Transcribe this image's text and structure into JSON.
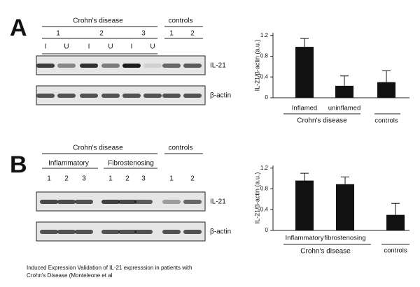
{
  "panels": [
    {
      "letter": "A",
      "blot": {
        "group": "Crohn's disease",
        "controls": "controls",
        "patients": [
          "1",
          "2",
          "3"
        ],
        "control_lanes": [
          "1",
          "2"
        ],
        "lanes": [
          "I",
          "U",
          "I",
          "U",
          "I",
          "U"
        ],
        "rows": [
          "IL-21",
          "β-actin"
        ]
      }
    },
    {
      "letter": "B",
      "blot": {
        "group": "Crohn's disease",
        "controls": "controls",
        "subgroups": [
          "Inflammatory",
          "Fibrostenosing"
        ],
        "lanes": [
          "1",
          "2",
          "3",
          "1",
          "2",
          "3"
        ],
        "control_lanes": [
          "1",
          "2"
        ],
        "rows": [
          "IL-21",
          "β-actin"
        ]
      }
    }
  ],
  "chart_data": [
    {
      "type": "bar",
      "y_label": "IL-21/β-actin (a.u.)",
      "categories": [
        "Inflamed",
        "uninflamed",
        "controls"
      ],
      "values": [
        0.98,
        0.23,
        0.3
      ],
      "errors": [
        0.16,
        0.19,
        0.22
      ],
      "color": "#111111",
      "ylim": [
        0,
        1.25
      ],
      "yticks": [
        0,
        0.4,
        0.8,
        1.2
      ],
      "group_label": "Crohn's disease"
    },
    {
      "type": "bar",
      "y_label": "IL-21/β-actin (a.u.)",
      "categories": [
        "Inflammatory",
        "fibrostenosing",
        "controls"
      ],
      "values": [
        0.96,
        0.89,
        0.3
      ],
      "errors": [
        0.14,
        0.14,
        0.22
      ],
      "color": "#111111",
      "ylim": [
        0,
        1.25
      ],
      "yticks": [
        0,
        0.4,
        0.8,
        1.2
      ],
      "group_label": "Crohn's disease"
    }
  ],
  "caption": [
    "Induced Expression Validation of IL-21 expresssion in patients with",
    "Crohn's Disease (Monteleone et al"
  ]
}
